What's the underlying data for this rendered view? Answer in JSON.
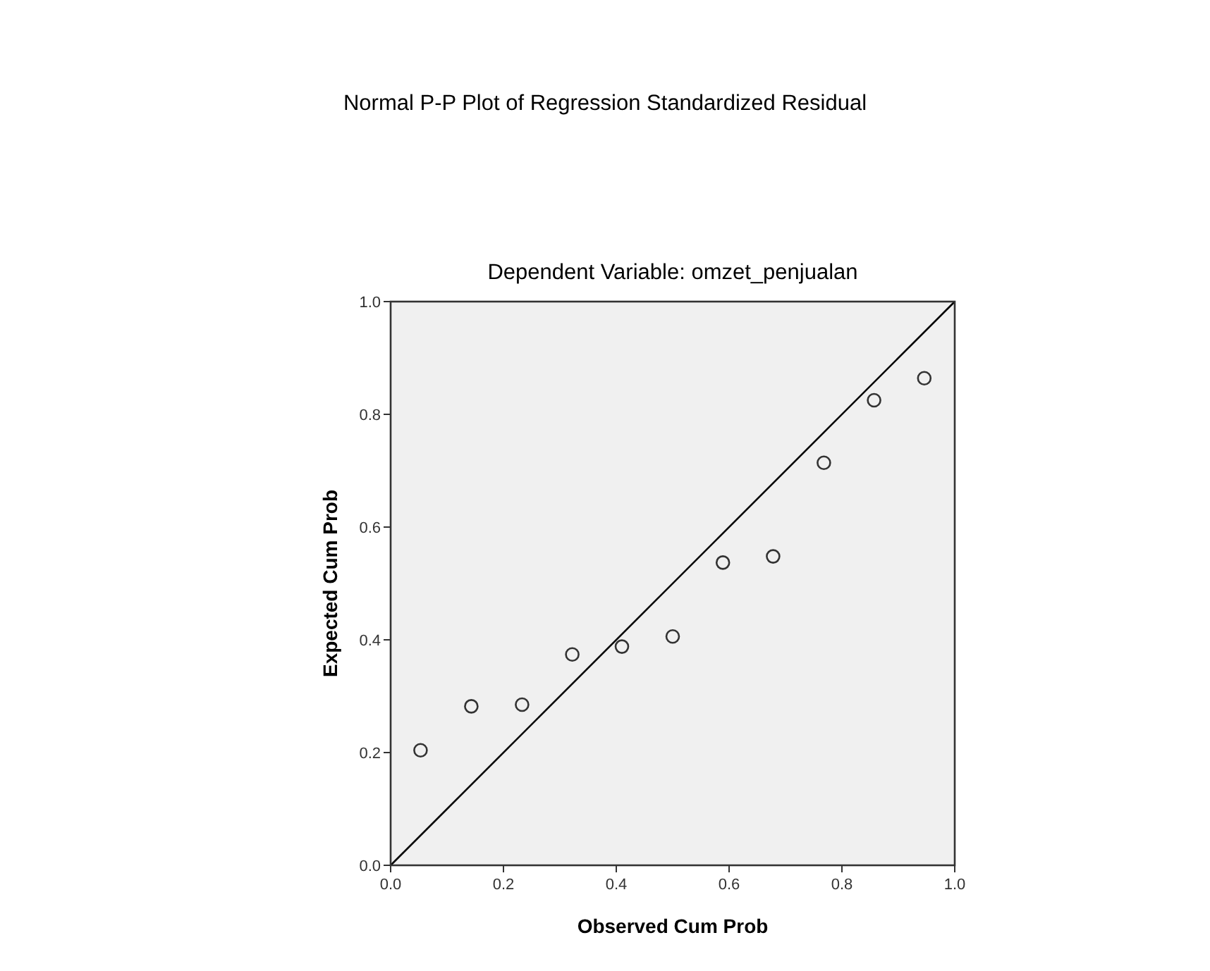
{
  "chart_data": {
    "type": "scatter",
    "title": "Normal P-P Plot of Regression Standardized Residual",
    "subtitle": "Dependent Variable: omzet_penjualan",
    "xlabel": "Observed Cum Prob",
    "ylabel": "Expected Cum Prob",
    "xlim": [
      0,
      1
    ],
    "ylim": [
      0,
      1
    ],
    "xticks": [
      {
        "value": 0,
        "label": "0.0"
      },
      {
        "value": 0.2,
        "label": "0.2"
      },
      {
        "value": 0.4,
        "label": "0.4"
      },
      {
        "value": 0.6,
        "label": "0.6"
      },
      {
        "value": 0.8,
        "label": "0.8"
      },
      {
        "value": 1,
        "label": "1.0"
      }
    ],
    "yticks": [
      {
        "value": 0,
        "label": "0.0"
      },
      {
        "value": 0.2,
        "label": "0.2"
      },
      {
        "value": 0.4,
        "label": "0.4"
      },
      {
        "value": 0.6,
        "label": "0.6"
      },
      {
        "value": 0.8,
        "label": "0.8"
      },
      {
        "value": 1,
        "label": "1.0"
      }
    ],
    "grid": false,
    "series": [
      {
        "color": "#333333",
        "marker": "circle",
        "x": [
          0.053,
          0.143,
          0.233,
          0.322,
          0.41,
          0.5,
          0.589,
          0.678,
          0.768,
          0.857,
          0.946
        ],
        "values": [
          0.204,
          0.282,
          0.285,
          0.374,
          0.388,
          0.406,
          0.537,
          0.548,
          0.714,
          0.825,
          0.864
        ]
      },
      {
        "type": "line",
        "color": "#000000",
        "marker": "none",
        "line_style": "solid",
        "x": [
          0,
          1
        ],
        "values": [
          0,
          1
        ]
      }
    ]
  }
}
